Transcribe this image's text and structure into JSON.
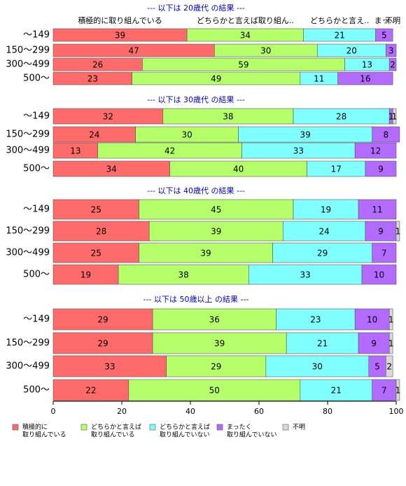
{
  "chart_data": [
    {
      "type": "bar",
      "orientation": "horizontal",
      "stacked": true,
      "title": "--- 以下は 20歳代 の結果 ---",
      "column_labels": [
        "積極的に取り組んでいる",
        "どちらかと言えば取り組ん..",
        "どちらかと言え..",
        "まっ..",
        "不明"
      ],
      "categories": [
        "～149",
        "150～299",
        "300～499",
        "500～"
      ],
      "xlim": [
        0,
        100
      ],
      "series": [
        {
          "name": [
            "積極的に",
            "取り組んでいる"
          ],
          "color": "#ff6b6b",
          "values": [
            39,
            47,
            26,
            23
          ]
        },
        {
          "name": [
            "どちらかと言えば",
            "取り組んでいる"
          ],
          "color": "#b5ff6b",
          "values": [
            34,
            30,
            59,
            49
          ]
        },
        {
          "name": [
            "どちらかと言えば",
            "取り組んでいない"
          ],
          "color": "#80ffff",
          "values": [
            21,
            20,
            13,
            11
          ]
        },
        {
          "name": [
            "まったく",
            "取り組んでいない"
          ],
          "color": "#b36bff",
          "values": [
            5,
            3,
            2,
            16
          ]
        },
        {
          "name": [
            "不明"
          ],
          "color": "#d9d9d9",
          "values": [
            0,
            0,
            0,
            0
          ]
        }
      ]
    },
    {
      "type": "bar",
      "orientation": "horizontal",
      "stacked": true,
      "title": "--- 以下は 30歳代 の結果 ---",
      "categories": [
        "～149",
        "150～299",
        "300～499",
        "500～"
      ],
      "xlim": [
        0,
        100
      ],
      "series": [
        {
          "color": "#ff6b6b",
          "values": [
            32,
            24,
            13,
            34
          ]
        },
        {
          "color": "#b5ff6b",
          "values": [
            38,
            30,
            42,
            40
          ]
        },
        {
          "color": "#80ffff",
          "values": [
            28,
            39,
            33,
            17
          ]
        },
        {
          "color": "#b36bff",
          "values": [
            1,
            8,
            12,
            9
          ]
        },
        {
          "color": "#d9d9d9",
          "values": [
            1,
            0,
            0,
            0
          ]
        }
      ]
    },
    {
      "type": "bar",
      "orientation": "horizontal",
      "stacked": true,
      "title": "--- 以下は 40歳代 の結果 ---",
      "categories": [
        "～149",
        "150～299",
        "300～499",
        "500～"
      ],
      "xlim": [
        0,
        100
      ],
      "series": [
        {
          "color": "#ff6b6b",
          "values": [
            25,
            28,
            25,
            19
          ]
        },
        {
          "color": "#b5ff6b",
          "values": [
            45,
            39,
            39,
            38
          ]
        },
        {
          "color": "#80ffff",
          "values": [
            19,
            24,
            29,
            33
          ]
        },
        {
          "color": "#b36bff",
          "values": [
            11,
            9,
            7,
            10
          ]
        },
        {
          "color": "#d9d9d9",
          "values": [
            0,
            1,
            0,
            0
          ]
        }
      ]
    },
    {
      "type": "bar",
      "orientation": "horizontal",
      "stacked": true,
      "title": "--- 以下は 50歳以上 の結果 ---",
      "categories": [
        "～149",
        "150～299",
        "300～499",
        "500～"
      ],
      "xlim": [
        0,
        100
      ],
      "xticks": [
        0,
        20,
        40,
        60,
        80,
        100
      ],
      "series": [
        {
          "color": "#ff6b6b",
          "values": [
            29,
            29,
            33,
            22
          ]
        },
        {
          "color": "#b5ff6b",
          "values": [
            36,
            39,
            29,
            50
          ]
        },
        {
          "color": "#80ffff",
          "values": [
            23,
            21,
            30,
            21
          ]
        },
        {
          "color": "#b36bff",
          "values": [
            10,
            9,
            5,
            7
          ]
        },
        {
          "color": "#d9d9d9",
          "values": [
            1,
            1,
            2,
            1
          ]
        }
      ]
    }
  ]
}
